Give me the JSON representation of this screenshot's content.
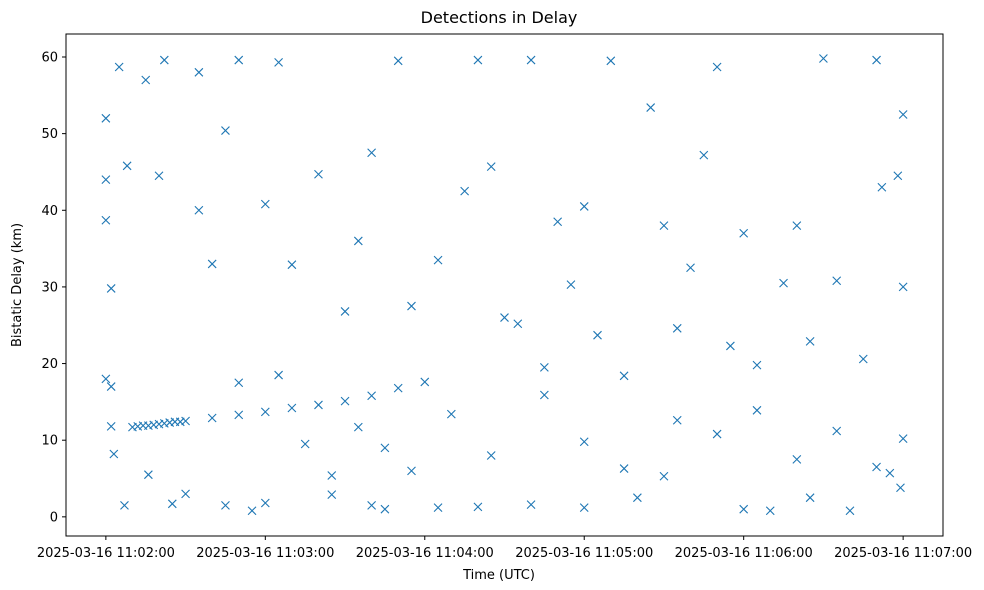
{
  "chart_data": {
    "type": "scatter",
    "title": "Detections in Delay",
    "xlabel": "Time (UTC)",
    "ylabel": "Bistatic Delay (km)",
    "xlim": [
      "2025-03-16 11:01:45",
      "2025-03-16 11:07:15"
    ],
    "ylim": [
      -2.5,
      63
    ],
    "x_ticks": [
      "2025-03-16 11:02:00",
      "2025-03-16 11:03:00",
      "2025-03-16 11:04:00",
      "2025-03-16 11:05:00",
      "2025-03-16 11:06:00",
      "2025-03-16 11:07:00"
    ],
    "y_ticks": [
      "0",
      "10",
      "20",
      "30",
      "40",
      "50",
      "60"
    ],
    "marker": "x",
    "grid": false,
    "legend": "none",
    "color": "#1f77b4",
    "series": [
      {
        "points": [
          [
            "2025-03-16 11:02:10",
            11.7
          ],
          [
            "2025-03-16 11:02:12",
            11.8
          ],
          [
            "2025-03-16 11:02:14",
            11.9
          ],
          [
            "2025-03-16 11:02:16",
            11.9
          ],
          [
            "2025-03-16 11:02:18",
            12.0
          ],
          [
            "2025-03-16 11:02:20",
            12.1
          ],
          [
            "2025-03-16 11:02:22",
            12.2
          ],
          [
            "2025-03-16 11:02:24",
            12.3
          ],
          [
            "2025-03-16 11:02:26",
            12.4
          ],
          [
            "2025-03-16 11:02:28",
            12.4
          ],
          [
            "2025-03-16 11:02:30",
            12.5
          ],
          [
            "2025-03-16 11:02:40",
            12.9
          ],
          [
            "2025-03-16 11:02:50",
            13.3
          ],
          [
            "2025-03-16 11:03:00",
            13.7
          ],
          [
            "2025-03-16 11:03:10",
            14.2
          ],
          [
            "2025-03-16 11:03:20",
            14.6
          ],
          [
            "2025-03-16 11:03:30",
            15.1
          ],
          [
            "2025-03-16 11:03:40",
            15.8
          ],
          [
            "2025-03-16 11:03:50",
            16.8
          ],
          [
            "2025-03-16 11:04:00",
            17.6
          ],
          [
            "2025-03-16 11:04:30",
            26.0
          ],
          [
            "2025-03-16 11:04:50",
            38.5
          ],
          [
            "2025-03-16 11:05:00",
            40.5
          ],
          [
            "2025-03-16 11:05:30",
            38.0
          ],
          [
            "2025-03-16 11:05:40",
            32.5
          ],
          [
            "2025-03-16 11:06:00",
            37.0
          ],
          [
            "2025-03-16 11:06:20",
            38.0
          ],
          [
            "2025-03-16 11:02:00",
            52.0
          ],
          [
            "2025-03-16 11:02:05",
            58.7
          ],
          [
            "2025-03-16 11:02:08",
            45.8
          ],
          [
            "2025-03-16 11:02:15",
            57.0
          ],
          [
            "2025-03-16 11:02:22",
            59.6
          ],
          [
            "2025-03-16 11:02:35",
            58.0
          ],
          [
            "2025-03-16 11:02:50",
            59.6
          ],
          [
            "2025-03-16 11:03:05",
            59.3
          ],
          [
            "2025-03-16 11:03:50",
            59.5
          ],
          [
            "2025-03-16 11:04:20",
            59.6
          ],
          [
            "2025-03-16 11:04:40",
            59.6
          ],
          [
            "2025-03-16 11:05:10",
            59.5
          ],
          [
            "2025-03-16 11:05:50",
            58.7
          ],
          [
            "2025-03-16 11:06:30",
            59.8
          ],
          [
            "2025-03-16 11:06:50",
            59.6
          ],
          [
            "2025-03-16 11:07:00",
            52.5
          ],
          [
            "2025-03-16 11:06:58",
            44.5
          ],
          [
            "2025-03-16 11:07:00",
            30.0
          ],
          [
            "2025-03-16 11:07:00",
            10.2
          ],
          [
            "2025-03-16 11:06:59",
            3.8
          ],
          [
            "2025-03-16 11:02:00",
            44.0
          ],
          [
            "2025-03-16 11:02:00",
            38.7
          ],
          [
            "2025-03-16 11:02:02",
            29.8
          ],
          [
            "2025-03-16 11:02:00",
            18.0
          ],
          [
            "2025-03-16 11:02:02",
            17.0
          ],
          [
            "2025-03-16 11:02:02",
            11.8
          ],
          [
            "2025-03-16 11:02:03",
            8.2
          ],
          [
            "2025-03-16 11:02:07",
            1.5
          ],
          [
            "2025-03-16 11:02:16",
            5.5
          ],
          [
            "2025-03-16 11:02:25",
            1.7
          ],
          [
            "2025-03-16 11:02:30",
            3.0
          ],
          [
            "2025-03-16 11:02:45",
            1.5
          ],
          [
            "2025-03-16 11:03:00",
            1.8
          ],
          [
            "2025-03-16 11:03:25",
            2.9
          ],
          [
            "2025-03-16 11:03:40",
            1.5
          ],
          [
            "2025-03-16 11:04:20",
            1.3
          ],
          [
            "2025-03-16 11:04:40",
            1.6
          ],
          [
            "2025-03-16 11:05:00",
            1.2
          ],
          [
            "2025-03-16 11:05:30",
            5.3
          ],
          [
            "2025-03-16 11:06:00",
            1.0
          ],
          [
            "2025-03-16 11:06:10",
            0.8
          ],
          [
            "2025-03-16 11:06:40",
            0.8
          ],
          [
            "2025-03-16 11:06:55",
            5.7
          ],
          [
            "2025-03-16 11:02:55",
            0.8
          ],
          [
            "2025-03-16 11:03:45",
            1.0
          ],
          [
            "2025-03-16 11:04:05",
            1.2
          ],
          [
            "2025-03-16 11:05:20",
            2.5
          ],
          [
            "2025-03-16 11:06:25",
            2.5
          ],
          [
            "2025-03-16 11:02:40",
            33.0
          ],
          [
            "2025-03-16 11:02:45",
            50.4
          ],
          [
            "2025-03-16 11:03:00",
            40.8
          ],
          [
            "2025-03-16 11:03:10",
            32.9
          ],
          [
            "2025-03-16 11:03:20",
            44.7
          ],
          [
            "2025-03-16 11:03:30",
            26.8
          ],
          [
            "2025-03-16 11:03:35",
            36.0
          ],
          [
            "2025-03-16 11:03:40",
            47.5
          ],
          [
            "2025-03-16 11:03:55",
            27.5
          ],
          [
            "2025-03-16 11:04:05",
            33.5
          ],
          [
            "2025-03-16 11:04:15",
            42.5
          ],
          [
            "2025-03-16 11:04:25",
            45.7
          ],
          [
            "2025-03-16 11:04:35",
            25.2
          ],
          [
            "2025-03-16 11:04:45",
            19.5
          ],
          [
            "2025-03-16 11:04:55",
            30.3
          ],
          [
            "2025-03-16 11:05:05",
            23.7
          ],
          [
            "2025-03-16 11:05:15",
            18.4
          ],
          [
            "2025-03-16 11:05:25",
            53.4
          ],
          [
            "2025-03-16 11:05:35",
            24.6
          ],
          [
            "2025-03-16 11:05:45",
            47.2
          ],
          [
            "2025-03-16 11:05:55",
            22.3
          ],
          [
            "2025-03-16 11:06:05",
            19.8
          ],
          [
            "2025-03-16 11:06:15",
            30.5
          ],
          [
            "2025-03-16 11:06:25",
            22.9
          ],
          [
            "2025-03-16 11:06:35",
            30.8
          ],
          [
            "2025-03-16 11:06:45",
            20.6
          ],
          [
            "2025-03-16 11:06:52",
            43.0
          ],
          [
            "2025-03-16 11:02:20",
            44.5
          ],
          [
            "2025-03-16 11:02:35",
            40.0
          ],
          [
            "2025-03-16 11:02:50",
            17.5
          ],
          [
            "2025-03-16 11:03:05",
            18.5
          ],
          [
            "2025-03-16 11:03:15",
            9.5
          ],
          [
            "2025-03-16 11:03:25",
            5.4
          ],
          [
            "2025-03-16 11:03:35",
            11.7
          ],
          [
            "2025-03-16 11:03:45",
            9.0
          ],
          [
            "2025-03-16 11:03:55",
            6.0
          ],
          [
            "2025-03-16 11:04:10",
            13.4
          ],
          [
            "2025-03-16 11:04:25",
            8.0
          ],
          [
            "2025-03-16 11:04:45",
            15.9
          ],
          [
            "2025-03-16 11:05:00",
            9.8
          ],
          [
            "2025-03-16 11:05:15",
            6.3
          ],
          [
            "2025-03-16 11:05:35",
            12.6
          ],
          [
            "2025-03-16 11:05:50",
            10.8
          ],
          [
            "2025-03-16 11:06:05",
            13.9
          ],
          [
            "2025-03-16 11:06:20",
            7.5
          ],
          [
            "2025-03-16 11:06:35",
            11.2
          ],
          [
            "2025-03-16 11:06:50",
            6.5
          ]
        ]
      }
    ]
  }
}
